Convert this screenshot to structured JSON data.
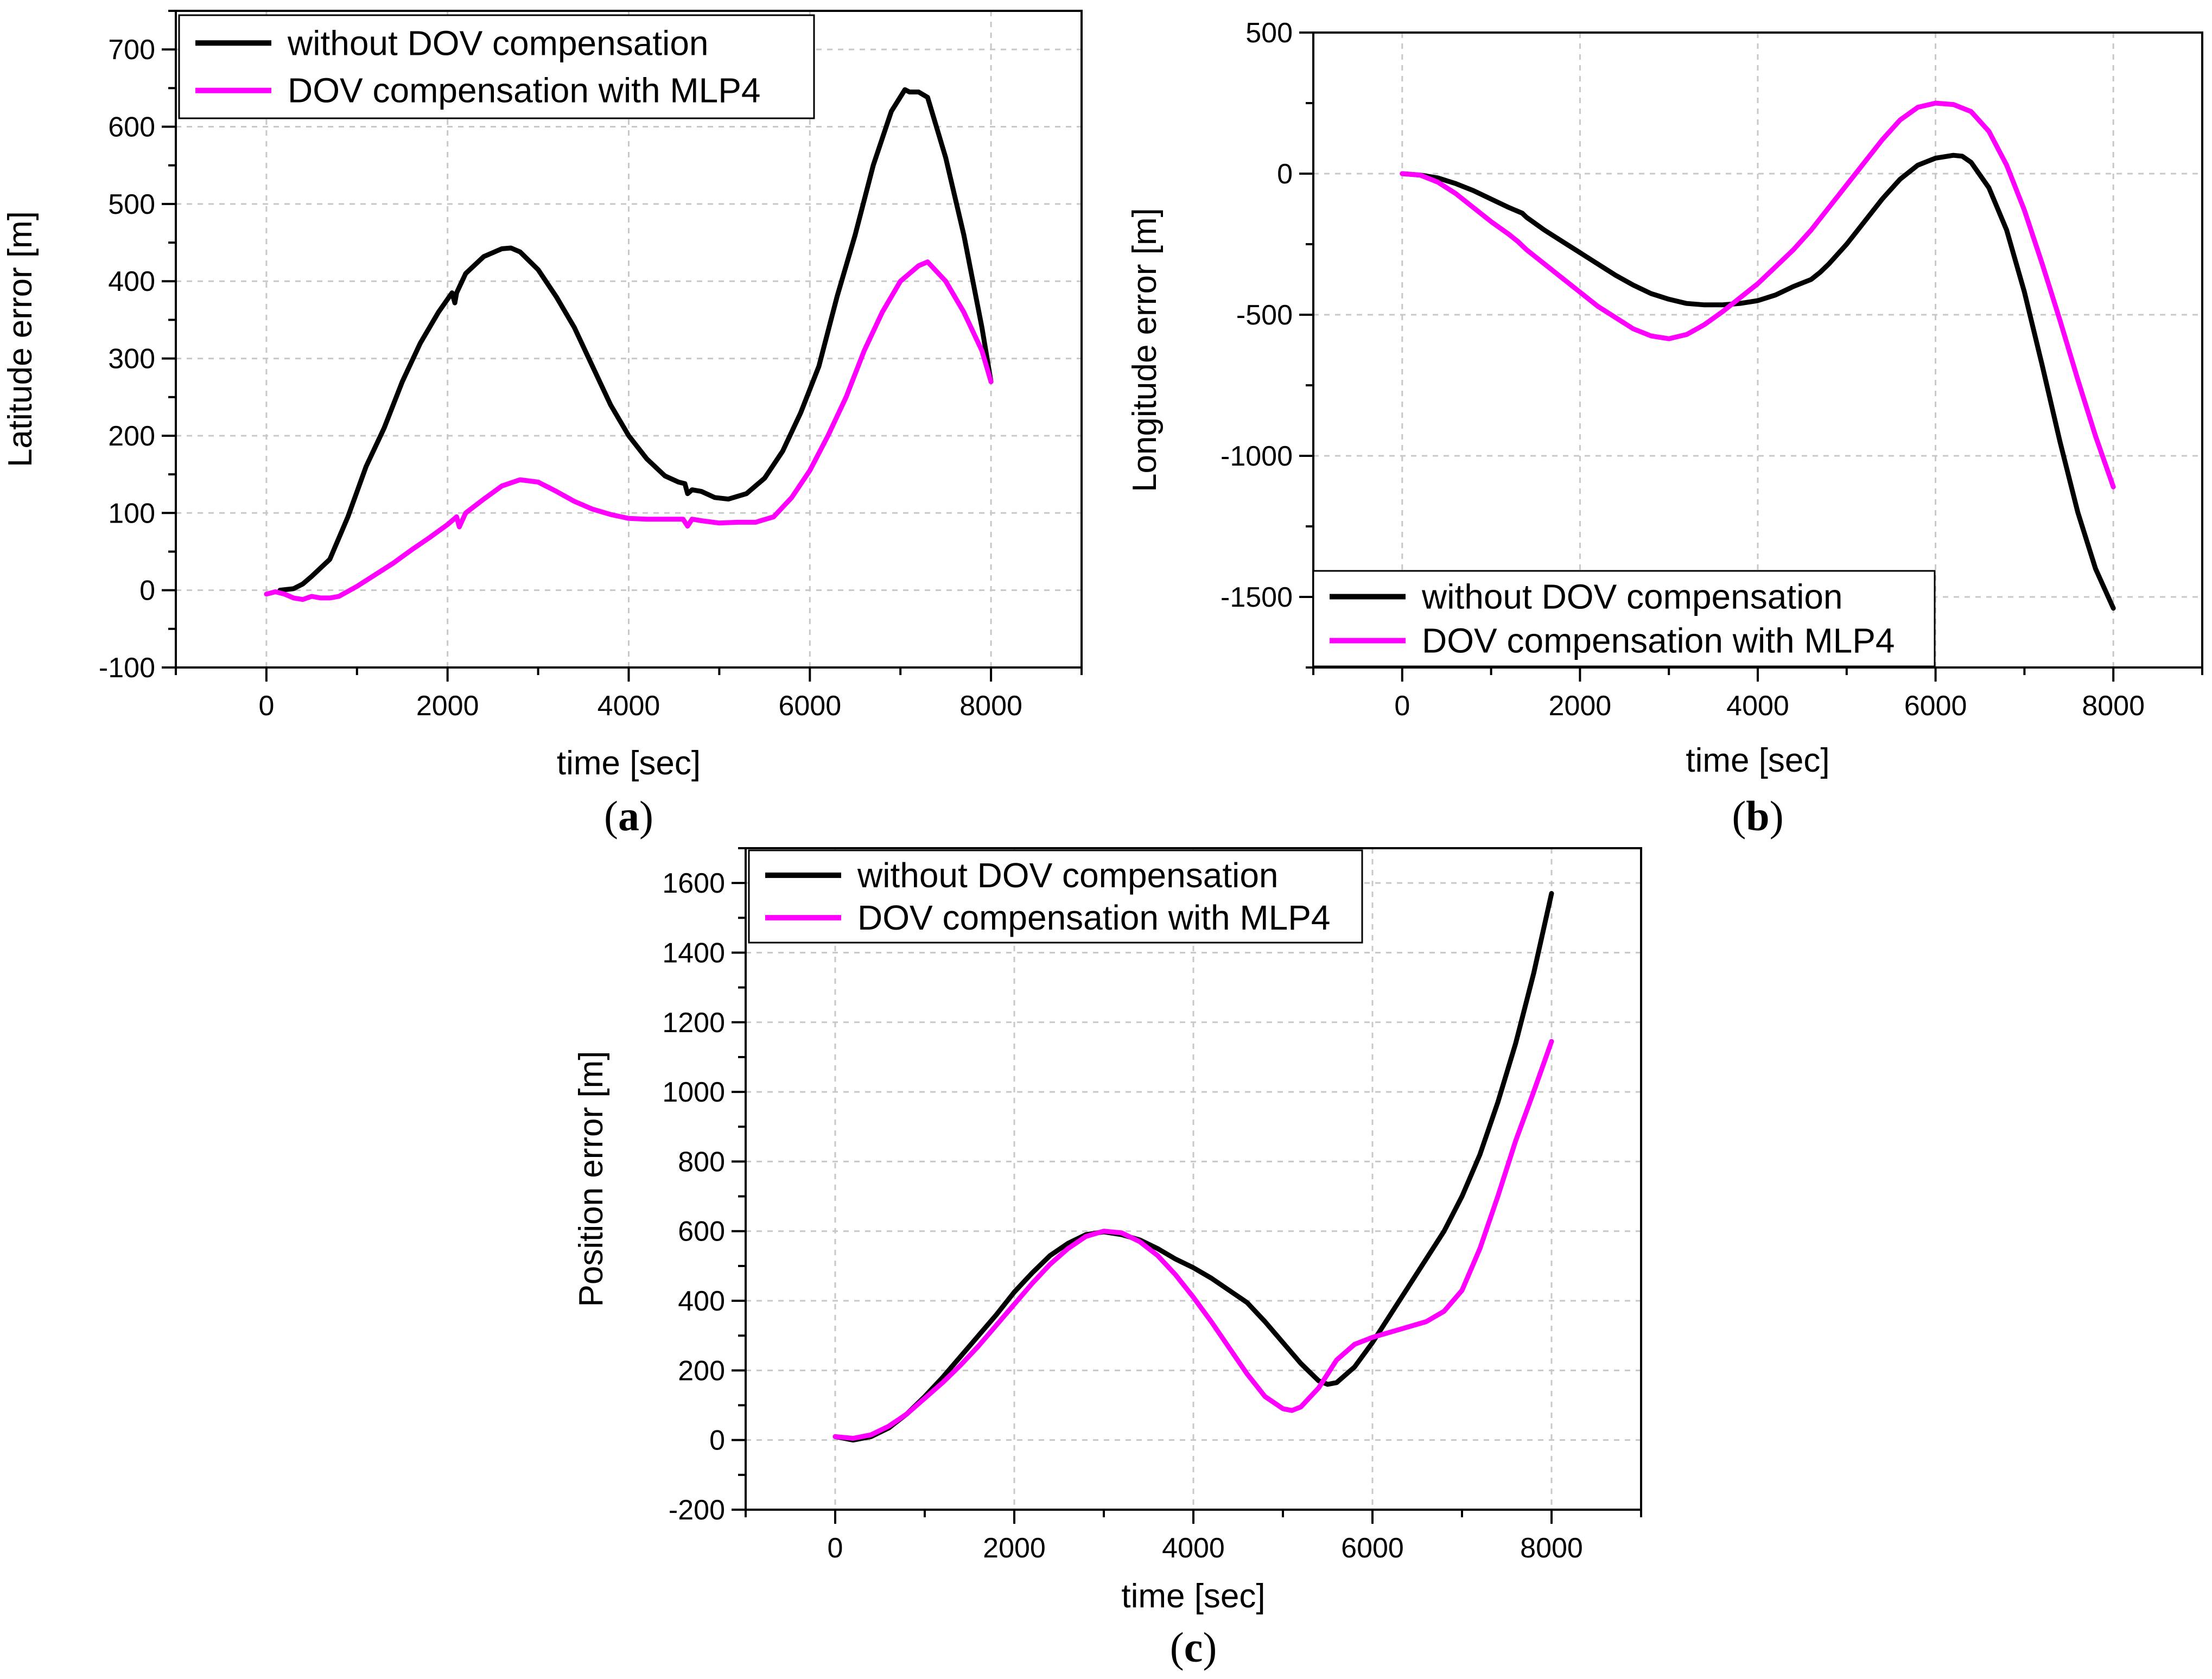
{
  "chart_data": [
    {
      "panel": "a",
      "type": "line",
      "panel_label": "(a)",
      "xlabel": "time [sec]",
      "ylabel": "Latitude error [m]",
      "xlim": [
        -1000,
        9000
      ],
      "ylim": [
        -100,
        750
      ],
      "xticks": [
        0,
        2000,
        4000,
        6000,
        8000
      ],
      "yticks": [
        -100,
        0,
        100,
        200,
        300,
        400,
        500,
        600,
        700
      ],
      "grid": true,
      "legend_position": "top-left",
      "series": [
        {
          "name": "without DOV compensation",
          "color": "#000000",
          "x": [
            150,
            300,
            400,
            500,
            700,
            900,
            1100,
            1300,
            1500,
            1700,
            1900,
            2050,
            2080,
            2100,
            2200,
            2400,
            2600,
            2700,
            2800,
            3000,
            3200,
            3400,
            3600,
            3800,
            4000,
            4200,
            4400,
            4550,
            4620,
            4650,
            4700,
            4800,
            4950,
            5100,
            5300,
            5500,
            5700,
            5900,
            6100,
            6300,
            6500,
            6700,
            6900,
            7050,
            7100,
            7200,
            7300,
            7500,
            7700,
            7900,
            8000
          ],
          "values": [
            0,
            2,
            8,
            18,
            40,
            95,
            160,
            210,
            270,
            320,
            360,
            385,
            372,
            385,
            410,
            432,
            442,
            443,
            438,
            415,
            380,
            340,
            290,
            240,
            200,
            170,
            148,
            140,
            138,
            125,
            130,
            128,
            120,
            118,
            125,
            145,
            180,
            230,
            290,
            380,
            460,
            550,
            620,
            648,
            645,
            645,
            638,
            560,
            460,
            340,
            270
          ]
        },
        {
          "name": "DOV compensation with MLP4",
          "color": "#ff00ff",
          "x": [
            0,
            100,
            200,
            300,
            400,
            500,
            600,
            700,
            800,
            1000,
            1200,
            1400,
            1600,
            1800,
            2000,
            2100,
            2130,
            2200,
            2400,
            2600,
            2800,
            3000,
            3200,
            3400,
            3600,
            3800,
            4000,
            4200,
            4400,
            4600,
            4650,
            4700,
            4800,
            5000,
            5200,
            5400,
            5600,
            5800,
            6000,
            6200,
            6400,
            6600,
            6800,
            7000,
            7200,
            7300,
            7500,
            7700,
            7900,
            8000
          ],
          "values": [
            -5,
            -2,
            -5,
            -10,
            -12,
            -8,
            -10,
            -10,
            -8,
            5,
            20,
            35,
            52,
            68,
            85,
            95,
            82,
            100,
            118,
            135,
            143,
            140,
            128,
            115,
            105,
            98,
            93,
            92,
            92,
            92,
            83,
            92,
            90,
            87,
            88,
            88,
            95,
            120,
            155,
            200,
            250,
            310,
            360,
            400,
            420,
            425,
            400,
            360,
            310,
            270
          ]
        }
      ]
    },
    {
      "panel": "b",
      "type": "line",
      "panel_label": "(b)",
      "xlabel": "time [sec]",
      "ylabel": "Longitude error [m]",
      "xlim": [
        -1000,
        9000
      ],
      "ylim": [
        -1750,
        500
      ],
      "xticks": [
        0,
        2000,
        4000,
        6000,
        8000
      ],
      "yticks": [
        -1500,
        -1000,
        -500,
        0,
        500
      ],
      "grid": true,
      "legend_position": "bottom-left",
      "series": [
        {
          "name": "without DOV compensation",
          "color": "#000000",
          "x": [
            0,
            200,
            400,
            600,
            800,
            1000,
            1200,
            1350,
            1400,
            1600,
            1800,
            2000,
            2100,
            2200,
            2400,
            2600,
            2800,
            3000,
            3200,
            3400,
            3600,
            3800,
            4000,
            4200,
            4400,
            4600,
            4700,
            4800,
            5000,
            5200,
            5400,
            5600,
            5800,
            6000,
            6200,
            6300,
            6400,
            6600,
            6800,
            7000,
            7200,
            7400,
            7600,
            7800,
            8000
          ],
          "values": [
            0,
            -5,
            -15,
            -35,
            -60,
            -90,
            -120,
            -140,
            -155,
            -200,
            -240,
            -280,
            -300,
            -320,
            -360,
            -395,
            -425,
            -445,
            -460,
            -465,
            -465,
            -460,
            -450,
            -430,
            -400,
            -375,
            -350,
            -320,
            -250,
            -170,
            -90,
            -20,
            30,
            55,
            65,
            62,
            40,
            -50,
            -200,
            -420,
            -680,
            -950,
            -1200,
            -1400,
            -1540
          ]
        },
        {
          "name": "DOV compensation with MLP4",
          "color": "#ff00ff",
          "x": [
            0,
            200,
            400,
            600,
            800,
            1000,
            1200,
            1300,
            1400,
            1600,
            1800,
            2000,
            2200,
            2400,
            2600,
            2800,
            3000,
            3200,
            3400,
            3600,
            3800,
            4000,
            4200,
            4400,
            4600,
            4800,
            5000,
            5200,
            5400,
            5600,
            5800,
            6000,
            6200,
            6400,
            6600,
            6800,
            7000,
            7200,
            7400,
            7600,
            7800,
            8000
          ],
          "values": [
            0,
            -5,
            -30,
            -70,
            -120,
            -170,
            -215,
            -240,
            -270,
            -320,
            -370,
            -420,
            -470,
            -510,
            -550,
            -575,
            -585,
            -570,
            -535,
            -490,
            -440,
            -390,
            -330,
            -270,
            -200,
            -120,
            -40,
            40,
            120,
            190,
            235,
            250,
            245,
            220,
            150,
            30,
            -130,
            -320,
            -520,
            -730,
            -930,
            -1110
          ]
        }
      ]
    },
    {
      "panel": "c",
      "type": "line",
      "panel_label": "(c)",
      "xlabel": "time [sec]",
      "ylabel": "Position error [m]",
      "xlim": [
        -1000,
        9000
      ],
      "ylim": [
        -200,
        1700
      ],
      "xticks": [
        0,
        2000,
        4000,
        6000,
        8000
      ],
      "yticks": [
        -200,
        0,
        200,
        400,
        600,
        800,
        1000,
        1200,
        1400,
        1600
      ],
      "grid": true,
      "legend_position": "top-left",
      "series": [
        {
          "name": "without DOV compensation",
          "color": "#000000",
          "x": [
            0,
            100,
            200,
            400,
            600,
            800,
            1000,
            1200,
            1400,
            1600,
            1800,
            2000,
            2200,
            2400,
            2600,
            2800,
            3000,
            3200,
            3400,
            3600,
            3800,
            4000,
            4200,
            4400,
            4600,
            4800,
            5000,
            5200,
            5300,
            5400,
            5500,
            5600,
            5800,
            6000,
            6200,
            6400,
            6600,
            6800,
            7000,
            7200,
            7400,
            7600,
            7800,
            8000
          ],
          "values": [
            10,
            5,
            0,
            10,
            35,
            75,
            125,
            180,
            240,
            300,
            360,
            425,
            480,
            530,
            565,
            590,
            598,
            590,
            575,
            550,
            520,
            495,
            465,
            430,
            395,
            340,
            280,
            220,
            195,
            170,
            160,
            165,
            210,
            280,
            360,
            440,
            520,
            600,
            700,
            820,
            970,
            1140,
            1340,
            1570
          ]
        },
        {
          "name": "DOV compensation with MLP4",
          "color": "#ff00ff",
          "x": [
            0,
            200,
            400,
            600,
            800,
            1000,
            1200,
            1400,
            1600,
            1800,
            2000,
            2200,
            2400,
            2600,
            2800,
            3000,
            3200,
            3400,
            3600,
            3800,
            4000,
            4200,
            4400,
            4600,
            4800,
            5000,
            5100,
            5200,
            5400,
            5600,
            5800,
            6000,
            6200,
            6400,
            6600,
            6800,
            7000,
            7200,
            7400,
            7600,
            7800,
            8000
          ],
          "values": [
            10,
            5,
            15,
            40,
            75,
            120,
            165,
            215,
            270,
            330,
            390,
            450,
            505,
            550,
            585,
            600,
            595,
            570,
            530,
            475,
            410,
            340,
            265,
            190,
            125,
            90,
            85,
            95,
            150,
            230,
            275,
            295,
            310,
            325,
            340,
            370,
            430,
            550,
            700,
            860,
            1000,
            1145
          ]
        }
      ]
    }
  ]
}
